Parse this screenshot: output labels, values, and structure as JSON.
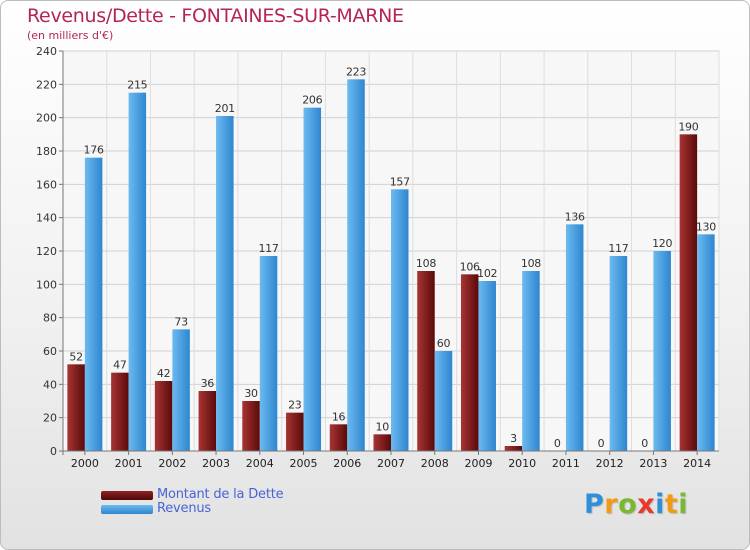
{
  "chart_data": {
    "type": "bar",
    "title": "Revenus/Dette - FONTAINES-SUR-MARNE",
    "subtitle": "(en milliers d'€)",
    "categories": [
      "2000",
      "2001",
      "2002",
      "2003",
      "2004",
      "2005",
      "2006",
      "2007",
      "2008",
      "2009",
      "2010",
      "2011",
      "2012",
      "2013",
      "2014"
    ],
    "series": [
      {
        "name": "Montant de la Dette",
        "color": "#7a1616",
        "values": [
          52,
          47,
          42,
          36,
          30,
          23,
          16,
          10,
          108,
          106,
          3,
          0,
          0,
          0,
          190
        ]
      },
      {
        "name": "Revenus",
        "color": "#4aa3e6",
        "values": [
          176,
          215,
          73,
          201,
          117,
          206,
          223,
          157,
          60,
          102,
          108,
          136,
          117,
          120,
          130
        ]
      }
    ],
    "ylim": [
      0,
      240
    ],
    "yticks": [
      0,
      20,
      40,
      60,
      80,
      100,
      120,
      140,
      160,
      180,
      200,
      220,
      240
    ],
    "grid": true,
    "legend": "bottom-left"
  },
  "logo": {
    "letters": [
      {
        "char": "P",
        "color": "#2f8fd8"
      },
      {
        "char": "r",
        "color": "#f29a16"
      },
      {
        "char": "o",
        "color": "#7ab82f"
      },
      {
        "char": "x",
        "color": "#e83a2a"
      },
      {
        "char": "i",
        "color": "#2f8fd8"
      },
      {
        "char": "t",
        "color": "#f29a16"
      },
      {
        "char": "i",
        "color": "#7ab82f"
      }
    ]
  }
}
